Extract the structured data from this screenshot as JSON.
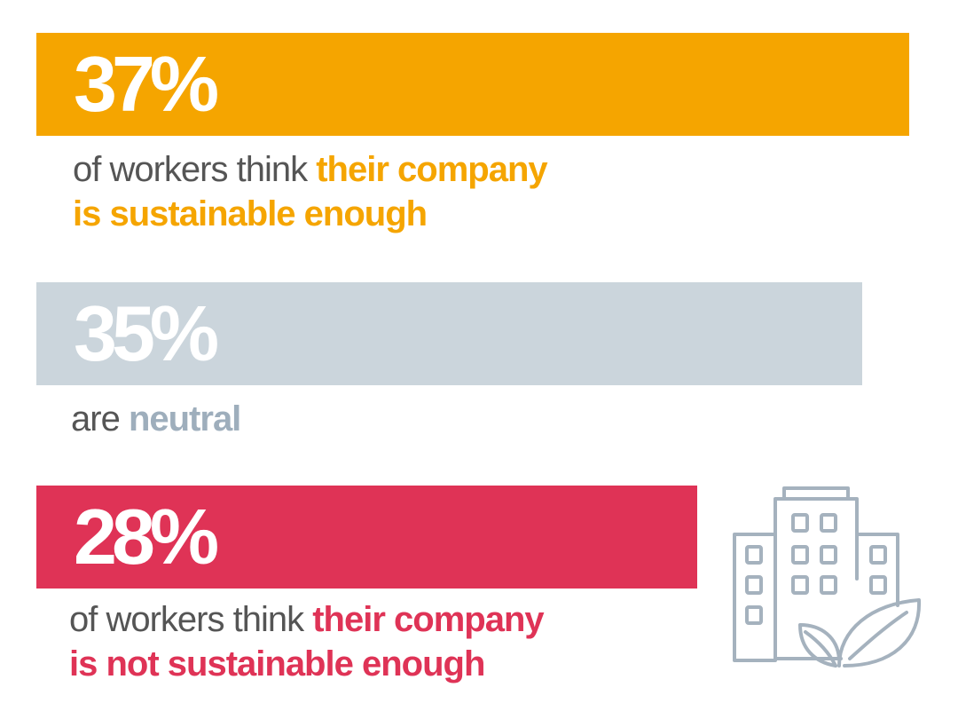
{
  "colors": {
    "orange": "#F5A500",
    "gray": "#CBD5DC",
    "gray_text": "#9EAEBC",
    "red": "#DF3356",
    "caption": "#555555",
    "icon": "#A5B2BE"
  },
  "icon": "building-with-leaves-icon",
  "chart_data": {
    "type": "bar",
    "orientation": "horizontal",
    "unit": "%",
    "xlim": [
      0,
      37
    ],
    "categories": [
      "of workers think their company is sustainable enough",
      "are neutral",
      "of workers think their company is not sustainable enough"
    ],
    "values": [
      37,
      35,
      28
    ],
    "labels": [
      "37%",
      "35%",
      "28%"
    ]
  },
  "stats": [
    {
      "value": 37,
      "label": "37%",
      "color": "#F5A500",
      "caption_line1_plain": "of workers think ",
      "caption_line1_highlight": "their company",
      "caption_line2_highlight": "is sustainable enough"
    },
    {
      "value": 35,
      "label": "35%",
      "color": "#CBD5DC",
      "caption_plain": "are ",
      "caption_highlight": "neutral"
    },
    {
      "value": 28,
      "label": "28%",
      "color": "#DF3356",
      "caption_line1_plain": "of workers think ",
      "caption_line1_highlight": "their company",
      "caption_line2_highlight": "is not sustainable enough"
    }
  ]
}
